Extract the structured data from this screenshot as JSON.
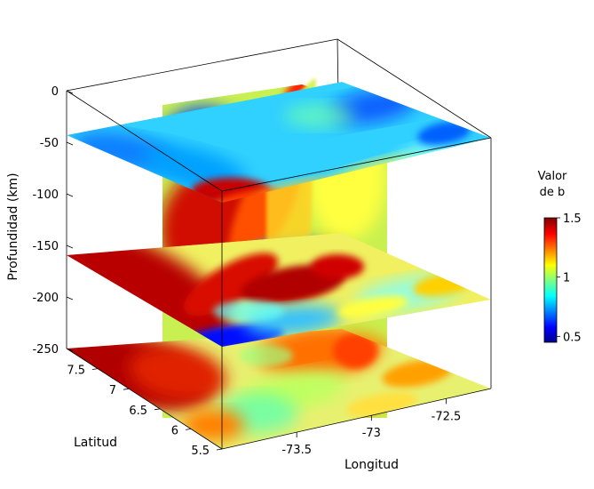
{
  "chart_data": {
    "type": "heatmap",
    "subtype": "3d-slice-volume",
    "title": "",
    "ylabel_depth": "Profundidad (km)",
    "xlabel_lat": "Latitud",
    "xlabel_lon": "Longitud",
    "depth_ticks": [
      "0",
      "-50",
      "-100",
      "-150",
      "-200",
      "-250"
    ],
    "depth_tick_values": [
      0,
      -50,
      -100,
      -150,
      -200,
      -250
    ],
    "lat_ticks": [
      "7.5",
      "7",
      "6.5",
      "6",
      "5.5"
    ],
    "lat_tick_values": [
      7.5,
      7,
      6.5,
      6,
      5.5
    ],
    "lon_ticks": [
      "-73.5",
      "-73",
      "-72.5"
    ],
    "lon_tick_values": [
      -73.5,
      -73,
      -72.5
    ],
    "depth_range": [
      -250,
      0
    ],
    "lat_range": [
      5.5,
      8.0
    ],
    "lon_range": [
      -74.0,
      -72.2
    ],
    "horizontal_slices_depth": [
      -45,
      -155,
      -245
    ],
    "vertical_slice_lat": 7.0,
    "vertical_slice_lon": -73.3,
    "colorbar": {
      "title_line1": "Valor",
      "title_line2": "de b",
      "ticks": [
        "1.5",
        "1",
        "0.5"
      ],
      "tick_values": [
        1.5,
        1.0,
        0.5
      ],
      "range": [
        0.45,
        1.5
      ],
      "colormap": "jet"
    }
  }
}
